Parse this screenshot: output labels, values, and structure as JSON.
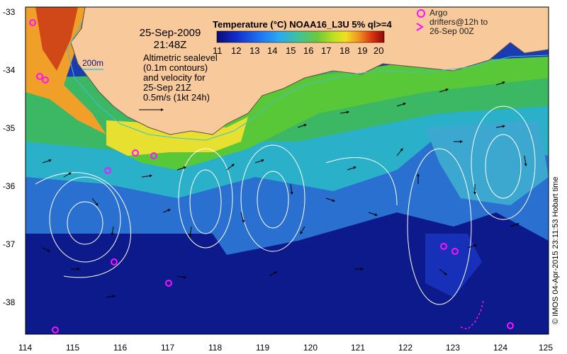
{
  "title": {
    "colorbar_title": "Temperature (°C) NOAA16_L3U 5% ql>=4",
    "date": "25-Sep-2009",
    "time": "21:48Z"
  },
  "annotations": {
    "alt_line1": "Altimetric sealevel",
    "alt_line2": "(0.1m contours)",
    "alt_line3": "and velocity for",
    "alt_line4": "25-Sep 21Z",
    "alt_line5": "0.5m/s (1kt 24h)",
    "isobath_label": "200m",
    "argo_line1": "Argo",
    "argo_line2": "drifters@12h to",
    "argo_line3": "26-Sep 00Z",
    "credit": "© IMOS 04-Apr-2015 23:11:53 Hobart time"
  },
  "colorbar": {
    "ticks": [
      "11",
      "12",
      "13",
      "14",
      "15",
      "16",
      "17",
      "18",
      "19",
      "20"
    ],
    "colors": [
      "#0a0a78",
      "#1030c8",
      "#1f6ff0",
      "#2aa8f0",
      "#3fc0a0",
      "#48b848",
      "#98d828",
      "#f0e020",
      "#f09020",
      "#d83010",
      "#8c0a0a"
    ]
  },
  "axes": {
    "x_ticks": [
      "114",
      "115",
      "116",
      "117",
      "118",
      "119",
      "120",
      "121",
      "122",
      "123",
      "124",
      "125"
    ],
    "y_ticks": [
      "-33",
      "-34",
      "-35",
      "-36",
      "-37",
      "-38"
    ]
  },
  "colors": {
    "land": "#f7c99b",
    "marker": "#ff10ff",
    "contour": "#ffffff",
    "isobath": "#40c0d0"
  }
}
